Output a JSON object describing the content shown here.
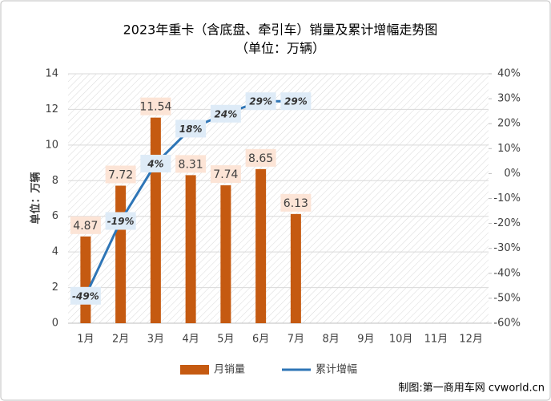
{
  "chart_data": {
    "type": "bar",
    "title": "2023年重卡（含底盘、牵引车）销量及累计增幅走势图",
    "subtitle": "（单位：万辆）",
    "y_label": "单位：万辆",
    "source": "制图:第一商用车网 cvworld.cn",
    "categories": [
      "1月",
      "2月",
      "3月",
      "4月",
      "5月",
      "6月",
      "7月",
      "8月",
      "9月",
      "10月",
      "11月",
      "12月"
    ],
    "series": [
      {
        "name": "月销量",
        "type": "bar",
        "color": "#c55a11",
        "values": [
          4.87,
          7.72,
          11.54,
          8.31,
          7.74,
          8.65,
          6.13,
          null,
          null,
          null,
          null,
          null
        ]
      },
      {
        "name": "累计增幅",
        "type": "line",
        "axis": "y2",
        "color": "#2e75b6",
        "values": [
          -49,
          -19,
          4,
          18,
          24,
          29,
          29,
          null,
          null,
          null,
          null,
          null
        ],
        "value_labels": [
          "-49%",
          "-19%",
          "4%",
          "18%",
          "24%",
          "29%",
          "29%",
          null,
          null,
          null,
          null,
          null
        ]
      }
    ],
    "ylim": [
      0,
      14
    ],
    "yticks": [
      0,
      2,
      4,
      6,
      8,
      10,
      12,
      14
    ],
    "y2lim": [
      -60,
      40
    ],
    "y2ticks": [
      {
        "value": -60,
        "label": "-60%"
      },
      {
        "value": -50,
        "label": "-50%"
      },
      {
        "value": -40,
        "label": "-40%"
      },
      {
        "value": -30,
        "label": "-30%"
      },
      {
        "value": -20,
        "label": "-20%"
      },
      {
        "value": -10,
        "label": "-10%"
      },
      {
        "value": 0,
        "label": "0%"
      },
      {
        "value": 10,
        "label": "10%"
      },
      {
        "value": 20,
        "label": "20%"
      },
      {
        "value": 30,
        "label": "30%"
      },
      {
        "value": 40,
        "label": "40%"
      }
    ],
    "grid": true,
    "legend": "bottom"
  }
}
